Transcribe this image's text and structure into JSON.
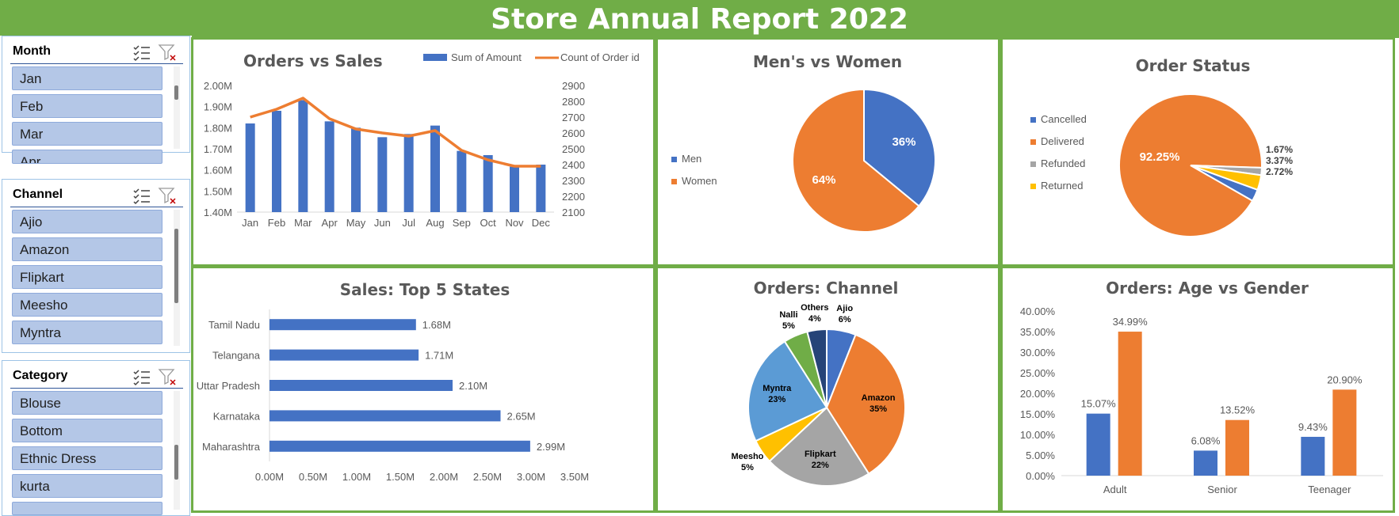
{
  "report_title": "Store Annual Report 2022",
  "colors": {
    "blue": "#4472c4",
    "orange": "#ed7d31",
    "gray": "#a5a5a5",
    "yellow": "#ffc000",
    "lightblue": "#5b9bd5",
    "green": "#70ad47",
    "navy": "#264478"
  },
  "slicers": [
    {
      "title": "Month",
      "items": [
        "Jan",
        "Feb",
        "Mar",
        "Apr"
      ]
    },
    {
      "title": "Channel",
      "items": [
        "Ajio",
        "Amazon",
        "Flipkart",
        "Meesho",
        "Myntra"
      ]
    },
    {
      "title": "Category",
      "items": [
        "Blouse",
        "Bottom",
        "Ethnic Dress",
        "kurta"
      ]
    }
  ],
  "chart_data": [
    {
      "type": "bar",
      "title": "Orders vs Sales",
      "categories": [
        "Jan",
        "Feb",
        "Mar",
        "Apr",
        "May",
        "Jun",
        "Jul",
        "Aug",
        "Sep",
        "Oct",
        "Nov",
        "Dec"
      ],
      "series": [
        {
          "name": "Sum of Amount",
          "kind": "bar",
          "axis": "left",
          "color": "#4472c4",
          "values": [
            1.82,
            1.88,
            1.93,
            1.83,
            1.8,
            1.755,
            1.77,
            1.81,
            1.69,
            1.67,
            1.615,
            1.625
          ]
        },
        {
          "name": "Count of Order id",
          "kind": "line",
          "axis": "right",
          "color": "#ed7d31",
          "values": [
            2700,
            2750,
            2820,
            2690,
            2625,
            2600,
            2580,
            2615,
            2490,
            2430,
            2390,
            2390
          ]
        }
      ],
      "y_left": {
        "min": 1.4,
        "max": 2.0,
        "step": 0.1,
        "ticks": [
          "1.40M",
          "1.50M",
          "1.60M",
          "1.70M",
          "1.80M",
          "1.90M",
          "2.00M"
        ]
      },
      "y_right": {
        "min": 2100,
        "max": 2900,
        "step": 100,
        "ticks": [
          "2100",
          "2200",
          "2300",
          "2400",
          "2500",
          "2600",
          "2700",
          "2800",
          "2900"
        ]
      },
      "legend": "top-right"
    },
    {
      "type": "pie",
      "title": "Men's vs Women",
      "labels": [
        "Men",
        "Women"
      ],
      "values": [
        36,
        64
      ],
      "data_labels": [
        "36%",
        "64%"
      ],
      "colors": [
        "#4472c4",
        "#ed7d31"
      ],
      "legend": "left"
    },
    {
      "type": "pie",
      "title": "Order Status",
      "labels": [
        "Cancelled",
        "Delivered",
        "Refunded",
        "Returned"
      ],
      "values": [
        2.72,
        92.25,
        1.67,
        3.37
      ],
      "data_labels": [
        "2.72%",
        "92.25%",
        "1.67%",
        "3.37%"
      ],
      "colors": [
        "#4472c4",
        "#ed7d31",
        "#a5a5a5",
        "#ffc000"
      ],
      "legend": "left"
    },
    {
      "type": "bar",
      "orientation": "horizontal",
      "title": "Sales: Top 5 States",
      "categories": [
        "Tamil Nadu",
        "Telangana",
        "Uttar Pradesh",
        "Karnataka",
        "Maharashtra"
      ],
      "values": [
        1.68,
        1.71,
        2.1,
        2.65,
        2.99
      ],
      "data_labels": [
        "1.68M",
        "1.71M",
        "2.10M",
        "2.65M",
        "2.99M"
      ],
      "xlim": [
        0,
        3.5
      ],
      "x_ticks": [
        "0.00M",
        "0.50M",
        "1.00M",
        "1.50M",
        "2.00M",
        "2.50M",
        "3.00M",
        "3.50M"
      ]
    },
    {
      "type": "pie",
      "title": "Orders: Channel",
      "slices": [
        {
          "name": "Ajio",
          "pct": "6%",
          "value": 6,
          "color": "#4472c4"
        },
        {
          "name": "Amazon",
          "pct": "35%",
          "value": 35,
          "color": "#ed7d31"
        },
        {
          "name": "Flipkart",
          "pct": "22%",
          "value": 22,
          "color": "#a5a5a5"
        },
        {
          "name": "Meesho",
          "pct": "5%",
          "value": 5,
          "color": "#ffc000"
        },
        {
          "name": "Myntra",
          "pct": "23%",
          "value": 23,
          "color": "#5b9bd5"
        },
        {
          "name": "Nalli",
          "pct": "5%",
          "value": 5,
          "color": "#70ad47"
        },
        {
          "name": "Others",
          "pct": "4%",
          "value": 4,
          "color": "#264478"
        }
      ]
    },
    {
      "type": "bar",
      "title": "Orders: Age vs Gender",
      "categories": [
        "Adult",
        "Senior",
        "Teenager"
      ],
      "series": [
        {
          "values": [
            15.07,
            6.08,
            9.43
          ],
          "labels": [
            "15.07%",
            "6.08%",
            "9.43%"
          ],
          "color": "#4472c4"
        },
        {
          "values": [
            34.99,
            13.52,
            20.9
          ],
          "labels": [
            "34.99%",
            "13.52%",
            "20.90%"
          ],
          "color": "#ed7d31"
        }
      ],
      "ylim": [
        0,
        40
      ],
      "y_ticks": [
        "0.00%",
        "5.00%",
        "10.00%",
        "15.00%",
        "20.00%",
        "25.00%",
        "30.00%",
        "35.00%",
        "40.00%"
      ]
    }
  ]
}
